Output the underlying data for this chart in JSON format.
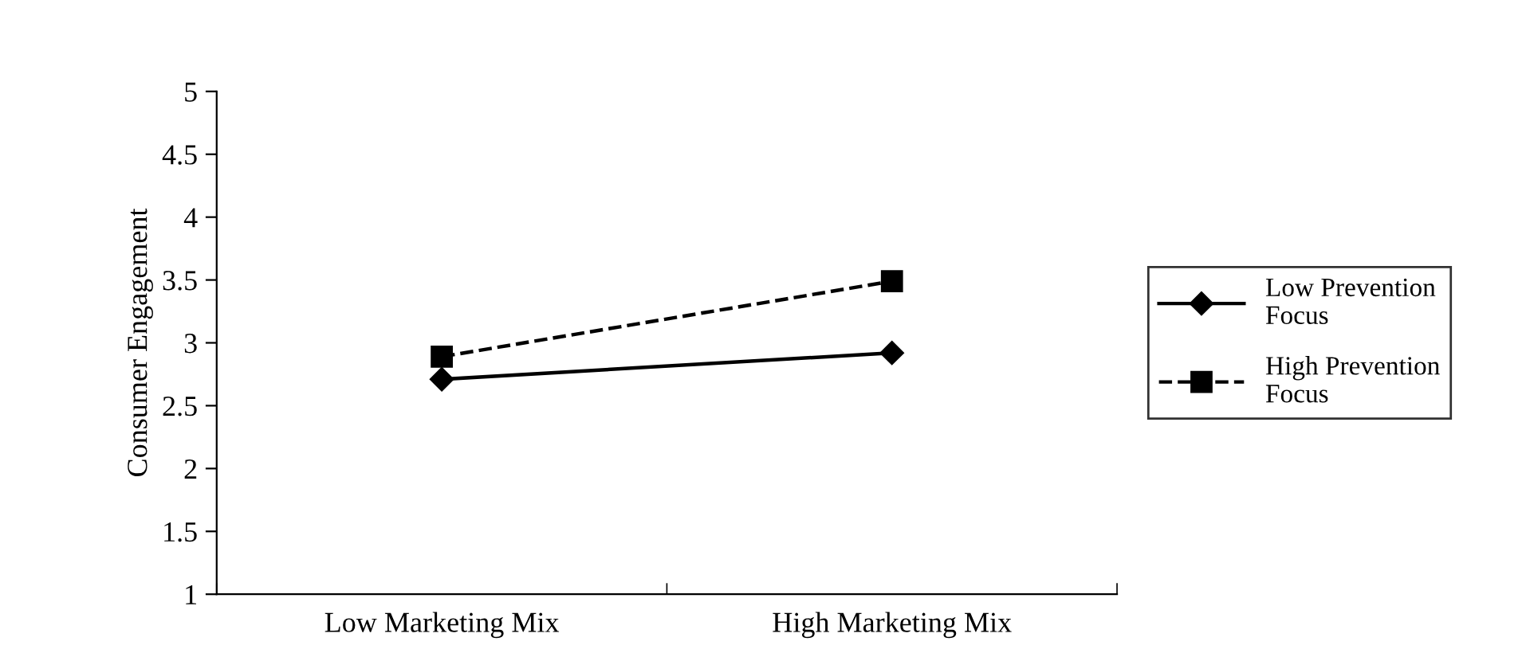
{
  "chart_data": {
    "type": "line",
    "ylabel": "Consumer Engagement",
    "categories": [
      "Low Marketing Mix",
      "High Marketing Mix"
    ],
    "series": [
      {
        "name": "Low Prevention\nFocus",
        "color": "#000000",
        "values": [
          2.71,
          2.92
        ],
        "marker": "diamond",
        "line_style": "solid"
      },
      {
        "name": "High Prevention\nFocus",
        "color": "#000000",
        "values": [
          2.89,
          3.49
        ],
        "marker": "square",
        "line_style": "dashed"
      }
    ],
    "ylim": [
      1,
      5
    ],
    "yticks": [
      1,
      1.5,
      2,
      2.5,
      3,
      3.5,
      4,
      4.5,
      5
    ],
    "grid": false,
    "legend": "right"
  }
}
